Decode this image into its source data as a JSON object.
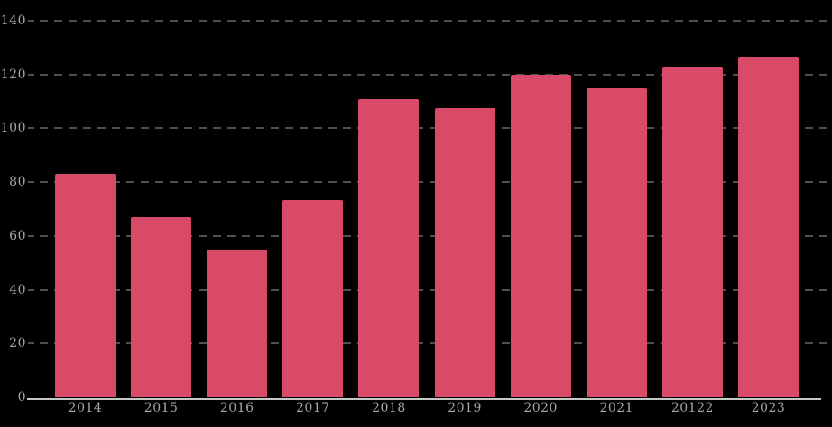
{
  "chart_data": {
    "type": "bar",
    "title": "",
    "xlabel": "",
    "ylabel": "",
    "categories": [
      "2014",
      "2015",
      "2016",
      "2017",
      "2018",
      "2019",
      "2020",
      "2021",
      "20122",
      "2023"
    ],
    "values": [
      83,
      67,
      55,
      73.5,
      111,
      107.5,
      120,
      115,
      123,
      126.5
    ],
    "ylim": [
      0,
      140
    ],
    "yticks": [
      0,
      20,
      40,
      60,
      80,
      100,
      120,
      140
    ],
    "grid": "horizontal-dashed",
    "legend": "none",
    "bar_color": "#d84a68",
    "gridline_color": "#4f4f4f",
    "tick_label_color": "#a6a6a6",
    "axis_line_color": "#c6c6c6",
    "background_color": "#000000"
  }
}
